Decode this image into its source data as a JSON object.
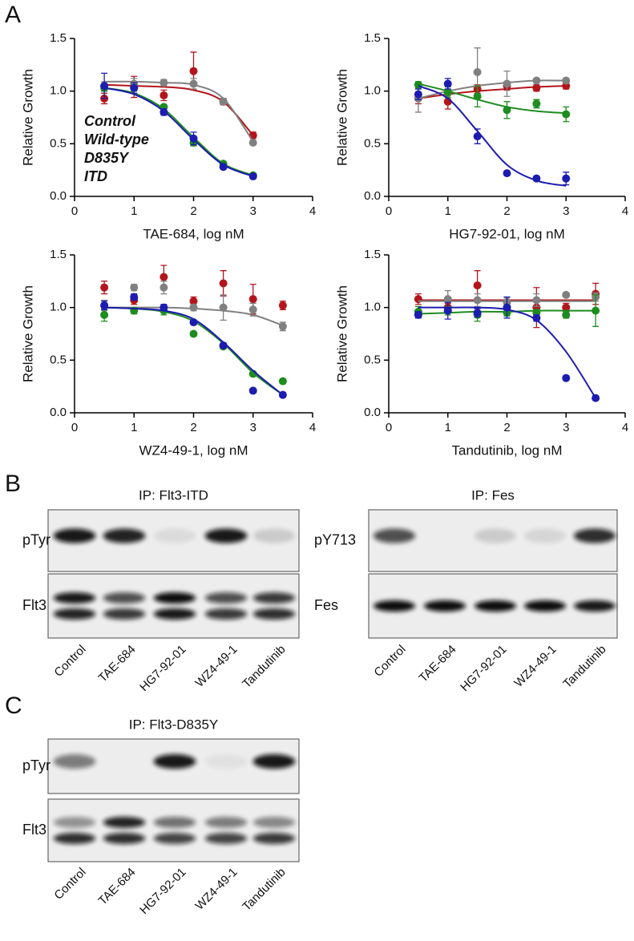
{
  "panel_labels": [
    "A",
    "B",
    "C"
  ],
  "chart_data": [
    {
      "type": "scatter",
      "xlabel": "TAE-684, log nM",
      "ylabel": "Relative  Growth",
      "legend": true,
      "xlim": [
        0,
        4
      ],
      "ylim": [
        0,
        1.5
      ],
      "xticks": [
        0,
        1,
        2,
        3,
        4
      ],
      "yticks": [
        {
          "value": 0,
          "label": "0.0"
        },
        {
          "value": 0.5,
          "label": "0.5"
        },
        {
          "value": 1,
          "label": "1.0"
        },
        {
          "value": 1.5,
          "label": "1.5"
        }
      ],
      "x": [
        0.5,
        1,
        1.5,
        2,
        2.5,
        3
      ],
      "series": [
        {
          "name": "Control",
          "color": "#b3151b",
          "values": [
            0.93,
            1.04,
            0.96,
            1.19,
            0.9,
            0.58
          ],
          "errors": [
            0.05,
            0.1,
            0.05,
            0.18,
            0.03,
            0.03
          ],
          "fit": [
            1.06,
            1.05,
            1.04,
            1.01,
            0.9,
            0.58
          ]
        },
        {
          "name": "Wild-type",
          "color": "#808080",
          "values": [
            1.05,
            1.07,
            1.08,
            1.07,
            0.9,
            0.51
          ],
          "errors": [
            0.04,
            0.05,
            0.03,
            0.05,
            0.02,
            0.02
          ],
          "fit": [
            1.09,
            1.09,
            1.08,
            1.06,
            0.93,
            0.52
          ]
        },
        {
          "name": "D835Y",
          "color": "#1e8c1e",
          "values": [
            1.03,
            1.03,
            0.85,
            0.51,
            0.31,
            0.2
          ],
          "errors": [
            0.03,
            0.03,
            0.02,
            0.03,
            0.02,
            0.02
          ],
          "fit": [
            1.03,
            0.98,
            0.83,
            0.56,
            0.31,
            0.2
          ]
        },
        {
          "name": "ITD",
          "color": "#1c1cb0",
          "values": [
            1.05,
            1.03,
            0.8,
            0.55,
            0.28,
            0.19
          ],
          "errors": [
            0.12,
            0.05,
            0.03,
            0.06,
            0.02,
            0.02
          ],
          "fit": [
            1.03,
            0.97,
            0.81,
            0.54,
            0.3,
            0.19
          ]
        }
      ]
    },
    {
      "type": "scatter",
      "xlabel": "HG7-92-01, log nM",
      "ylabel": "Relative  Growth",
      "legend": false,
      "xlim": [
        0,
        4
      ],
      "ylim": [
        0,
        1.5
      ],
      "xticks": [
        0,
        1,
        2,
        3,
        4
      ],
      "yticks": [
        {
          "value": 0,
          "label": "0.0"
        },
        {
          "value": 0.5,
          "label": "0.5"
        },
        {
          "value": 1,
          "label": "1.0"
        },
        {
          "value": 1.5,
          "label": "1.5"
        }
      ],
      "x": [
        0.5,
        1,
        1.5,
        2,
        2.5,
        3
      ],
      "series": [
        {
          "color": "#b3151b",
          "values": [
            0.93,
            0.9,
            1.02,
            1.05,
            1.03,
            1.05
          ],
          "errors": [
            0.05,
            0.07,
            0.04,
            0.04,
            0.03,
            0.03
          ],
          "fit": [
            0.93,
            0.97,
            1.0,
            1.02,
            1.04,
            1.05
          ]
        },
        {
          "color": "#808080",
          "values": [
            0.93,
            0.98,
            1.18,
            1.07,
            1.1,
            1.1
          ],
          "errors": [
            0.13,
            0.04,
            0.23,
            0.12,
            0.02,
            0.02
          ],
          "fit": [
            0.93,
            1.0,
            1.05,
            1.08,
            1.1,
            1.1
          ]
        },
        {
          "color": "#1e8c1e",
          "values": [
            1.06,
            0.99,
            0.95,
            0.82,
            0.88,
            0.78
          ],
          "errors": [
            0.03,
            0.05,
            0.1,
            0.08,
            0.04,
            0.07
          ],
          "fit": [
            1.07,
            1.0,
            0.92,
            0.85,
            0.81,
            0.79
          ]
        },
        {
          "color": "#1c1cb0",
          "values": [
            0.97,
            1.07,
            0.57,
            0.22,
            0.17,
            0.17
          ],
          "errors": [
            0.05,
            0.05,
            0.07,
            0.02,
            0.02,
            0.06
          ],
          "fit": [
            1.05,
            0.93,
            0.62,
            0.3,
            0.15,
            0.1
          ]
        }
      ]
    },
    {
      "type": "scatter",
      "xlabel": "WZ4-49-1, log nM",
      "ylabel": "Relative  Growth",
      "legend": false,
      "xlim": [
        0,
        4
      ],
      "ylim": [
        0,
        1.5
      ],
      "xticks": [
        0,
        1,
        2,
        3,
        4
      ],
      "yticks": [
        {
          "value": 0,
          "label": "0.0"
        },
        {
          "value": 0.5,
          "label": "0.5"
        },
        {
          "value": 1,
          "label": "1.0"
        },
        {
          "value": 1.5,
          "label": "1.5"
        }
      ],
      "x": [
        0.5,
        1,
        1.5,
        2,
        2.5,
        3,
        3.5
      ],
      "series": [
        {
          "color": "#b3151b",
          "values": [
            1.19,
            1.07,
            1.29,
            1.06,
            1.23,
            1.08,
            1.02
          ],
          "errors": [
            0.06,
            0.04,
            0.11,
            0.04,
            0.12,
            0.14,
            0.04
          ]
        },
        {
          "color": "#808080",
          "values": [
            1.02,
            1.19,
            1.19,
            1.0,
            1.0,
            0.98,
            0.82
          ],
          "errors": [
            0.05,
            0.03,
            0.06,
            0.03,
            0.12,
            0.06,
            0.04
          ],
          "fit": [
            1.0,
            1.0,
            1.0,
            0.99,
            0.97,
            0.93,
            0.83
          ]
        },
        {
          "color": "#1e8c1e",
          "values": [
            0.93,
            0.97,
            0.97,
            0.75,
            0.63,
            0.37,
            0.3
          ],
          "errors": [
            0.06,
            0.03,
            0.04,
            0.02,
            0.02,
            0.02,
            0.02
          ],
          "fit": [
            1.0,
            0.99,
            0.96,
            0.87,
            0.66,
            0.38,
            0.17
          ]
        },
        {
          "color": "#1c1cb0",
          "values": [
            1.02,
            1.1,
            1.0,
            0.86,
            0.64,
            0.21,
            0.17
          ],
          "errors": [
            0.04,
            0.03,
            0.03,
            0.02,
            0.02,
            0.02,
            0.02
          ],
          "fit": [
            1.0,
            0.99,
            0.97,
            0.89,
            0.67,
            0.4,
            0.17
          ]
        }
      ]
    },
    {
      "type": "scatter",
      "xlabel": "Tandutinib, log nM",
      "ylabel": "Relative  Growth",
      "legend": false,
      "xlim": [
        0,
        4
      ],
      "ylim": [
        0,
        1.5
      ],
      "xticks": [
        0,
        1,
        2,
        3,
        4
      ],
      "yticks": [
        {
          "value": 0,
          "label": "0.0"
        },
        {
          "value": 0.5,
          "label": "0.5"
        },
        {
          "value": 1,
          "label": "1.0"
        },
        {
          "value": 1.5,
          "label": "1.5"
        }
      ],
      "x": [
        0.5,
        1,
        1.5,
        2,
        2.5,
        3,
        3.5
      ],
      "series": [
        {
          "color": "#b3151b",
          "values": [
            1.08,
            1.0,
            1.21,
            1.0,
            1.0,
            1.0,
            1.13
          ],
          "errors": [
            0.05,
            0.04,
            0.14,
            0.03,
            0.19,
            0.04,
            0.1
          ],
          "fit": [
            1.07,
            1.07,
            1.07,
            1.07,
            1.07,
            1.07,
            1.07
          ]
        },
        {
          "color": "#808080",
          "values": [
            0.95,
            1.08,
            1.07,
            1.05,
            1.07,
            1.12,
            1.1
          ],
          "errors": [
            0.03,
            0.08,
            0.06,
            0.04,
            0.06,
            0.02,
            0.04
          ],
          "fit": [
            1.06,
            1.06,
            1.06,
            1.06,
            1.06,
            1.06,
            1.06
          ]
        },
        {
          "color": "#1e8c1e",
          "values": [
            0.96,
            0.97,
            0.93,
            0.95,
            0.95,
            0.93,
            0.97
          ],
          "errors": [
            0.05,
            0.04,
            0.06,
            0.03,
            0.03,
            0.03,
            0.15
          ],
          "fit": [
            0.94,
            0.95,
            0.96,
            0.96,
            0.97,
            0.97,
            0.97
          ]
        },
        {
          "color": "#1c1cb0",
          "values": [
            0.93,
            0.97,
            0.95,
            1.0,
            0.9,
            0.33,
            0.14
          ],
          "errors": [
            0.03,
            0.08,
            0.04,
            0.1,
            0.03,
            0.02,
            0.02
          ],
          "fit": [
            1.0,
            1.0,
            1.0,
            0.98,
            0.88,
            0.58,
            0.14
          ]
        }
      ]
    }
  ],
  "blots": [
    {
      "title": "IP: Flt3-ITD",
      "rows": [
        "pTyr",
        "Flt3"
      ],
      "lanes": [
        "Control",
        "TAE-684",
        "HG7-92-01",
        "WZ4-49-1",
        "Tandutinib"
      ]
    },
    {
      "title": "IP: Fes",
      "rows": [
        "pY713",
        "Fes"
      ],
      "lanes": [
        "Control",
        "TAE-684",
        "HG7-92-01",
        "WZ4-49-1",
        "Tandutinib"
      ]
    },
    {
      "title": "IP: Flt3-D835Y",
      "rows": [
        "pTyr",
        "Flt3"
      ],
      "lanes": [
        "Control",
        "TAE-684",
        "HG7-92-01",
        "WZ4-49-1",
        "Tandutinib"
      ]
    }
  ]
}
